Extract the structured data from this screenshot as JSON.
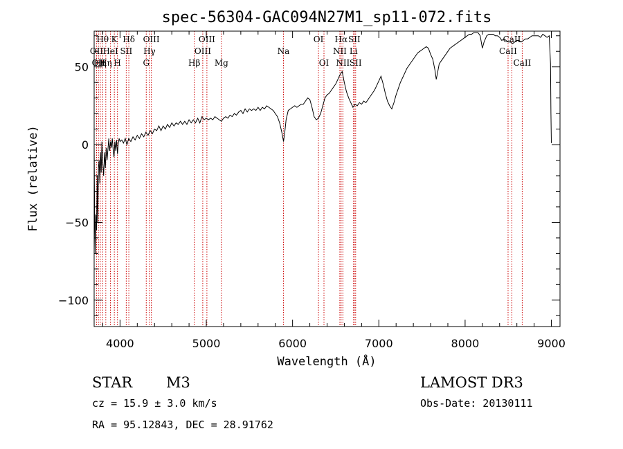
{
  "title": "spec-56304-GAC094N27M1_sp11-072.fits",
  "footer": {
    "object_class": "STAR",
    "subclass": "M3",
    "redshift": "cz = 15.9 ± 3.0 km/s",
    "coords": "RA =  95.12843, DEC =  28.91762",
    "survey": "LAMOST DR3",
    "obs_date": "Obs-Date: 20130111"
  },
  "chart_data": {
    "type": "line",
    "title": "spec-56304-GAC094N27M1_sp11-072.fits",
    "xlabel": "Wavelength (Å)",
    "ylabel": "Flux (relative)",
    "xlim": [
      3700,
      9100
    ],
    "ylim": [
      -117,
      73
    ],
    "x_ticks": [
      4000,
      5000,
      6000,
      7000,
      8000,
      9000
    ],
    "y_ticks": [
      -100,
      -50,
      0,
      50
    ],
    "line_color": "#000000",
    "marker_color": "#cc0000",
    "series": [
      {
        "points": [
          [
            3700,
            0
          ],
          [
            3705,
            -40
          ],
          [
            3712,
            -70
          ],
          [
            3720,
            -45
          ],
          [
            3728,
            -55
          ],
          [
            3735,
            -20
          ],
          [
            3742,
            -50
          ],
          [
            3750,
            -15
          ],
          [
            3758,
            -10
          ],
          [
            3766,
            -25
          ],
          [
            3774,
            -5
          ],
          [
            3782,
            -18
          ],
          [
            3790,
            2
          ],
          [
            3800,
            -12
          ],
          [
            3810,
            -20
          ],
          [
            3820,
            -5
          ],
          [
            3830,
            -15
          ],
          [
            3840,
            -2
          ],
          [
            3850,
            -10
          ],
          [
            3860,
            -3
          ],
          [
            3870,
            4
          ],
          [
            3880,
            -4
          ],
          [
            3890,
            2
          ],
          [
            3900,
            -2
          ],
          [
            3910,
            4
          ],
          [
            3920,
            -3
          ],
          [
            3930,
            -8
          ],
          [
            3940,
            2
          ],
          [
            3950,
            -4
          ],
          [
            3960,
            3
          ],
          [
            3970,
            -6
          ],
          [
            3980,
            1
          ],
          [
            3990,
            4
          ],
          [
            4000,
            2
          ],
          [
            4020,
            3
          ],
          [
            4040,
            1
          ],
          [
            4060,
            4
          ],
          [
            4080,
            0
          ],
          [
            4100,
            4
          ],
          [
            4125,
            2
          ],
          [
            4150,
            5
          ],
          [
            4175,
            3
          ],
          [
            4200,
            6
          ],
          [
            4225,
            4
          ],
          [
            4250,
            7
          ],
          [
            4275,
            5
          ],
          [
            4300,
            8
          ],
          [
            4325,
            6
          ],
          [
            4350,
            9
          ],
          [
            4375,
            7
          ],
          [
            4400,
            10
          ],
          [
            4425,
            9
          ],
          [
            4450,
            12
          ],
          [
            4475,
            9
          ],
          [
            4500,
            12
          ],
          [
            4525,
            10
          ],
          [
            4550,
            13
          ],
          [
            4575,
            11
          ],
          [
            4600,
            14
          ],
          [
            4625,
            12
          ],
          [
            4650,
            14
          ],
          [
            4675,
            13
          ],
          [
            4700,
            15
          ],
          [
            4725,
            13
          ],
          [
            4750,
            15
          ],
          [
            4775,
            13
          ],
          [
            4800,
            16
          ],
          [
            4825,
            14
          ],
          [
            4850,
            16
          ],
          [
            4875,
            14
          ],
          [
            4900,
            17
          ],
          [
            4925,
            14
          ],
          [
            4950,
            18
          ],
          [
            4975,
            16
          ],
          [
            5000,
            17
          ],
          [
            5025,
            16
          ],
          [
            5050,
            17
          ],
          [
            5075,
            16
          ],
          [
            5100,
            18
          ],
          [
            5125,
            17
          ],
          [
            5150,
            16
          ],
          [
            5175,
            15
          ],
          [
            5200,
            17
          ],
          [
            5225,
            18
          ],
          [
            5250,
            17
          ],
          [
            5275,
            19
          ],
          [
            5300,
            18
          ],
          [
            5325,
            20
          ],
          [
            5350,
            19
          ],
          [
            5375,
            21
          ],
          [
            5400,
            22
          ],
          [
            5425,
            20
          ],
          [
            5450,
            23
          ],
          [
            5475,
            21
          ],
          [
            5500,
            23
          ],
          [
            5525,
            22
          ],
          [
            5550,
            23
          ],
          [
            5575,
            22
          ],
          [
            5600,
            24
          ],
          [
            5625,
            22
          ],
          [
            5650,
            24
          ],
          [
            5675,
            23
          ],
          [
            5700,
            25
          ],
          [
            5725,
            24
          ],
          [
            5750,
            23
          ],
          [
            5775,
            22
          ],
          [
            5800,
            20
          ],
          [
            5825,
            18
          ],
          [
            5850,
            14
          ],
          [
            5875,
            8
          ],
          [
            5895,
            2
          ],
          [
            5910,
            8
          ],
          [
            5925,
            16
          ],
          [
            5950,
            22
          ],
          [
            5975,
            23
          ],
          [
            6000,
            24
          ],
          [
            6025,
            25
          ],
          [
            6050,
            24
          ],
          [
            6075,
            25
          ],
          [
            6100,
            26
          ],
          [
            6125,
            26
          ],
          [
            6150,
            28
          ],
          [
            6175,
            30
          ],
          [
            6200,
            29
          ],
          [
            6225,
            24
          ],
          [
            6250,
            18
          ],
          [
            6275,
            16
          ],
          [
            6300,
            17
          ],
          [
            6325,
            20
          ],
          [
            6350,
            25
          ],
          [
            6375,
            30
          ],
          [
            6400,
            32
          ],
          [
            6425,
            33
          ],
          [
            6450,
            35
          ],
          [
            6475,
            37
          ],
          [
            6500,
            39
          ],
          [
            6525,
            42
          ],
          [
            6550,
            45
          ],
          [
            6575,
            47
          ],
          [
            6600,
            40
          ],
          [
            6625,
            34
          ],
          [
            6650,
            30
          ],
          [
            6675,
            27
          ],
          [
            6700,
            24
          ],
          [
            6725,
            26
          ],
          [
            6750,
            25
          ],
          [
            6775,
            27
          ],
          [
            6800,
            26
          ],
          [
            6825,
            28
          ],
          [
            6850,
            27
          ],
          [
            6875,
            29
          ],
          [
            6900,
            31
          ],
          [
            6925,
            33
          ],
          [
            6950,
            35
          ],
          [
            6975,
            38
          ],
          [
            7000,
            41
          ],
          [
            7025,
            44
          ],
          [
            7050,
            39
          ],
          [
            7075,
            33
          ],
          [
            7100,
            28
          ],
          [
            7125,
            25
          ],
          [
            7150,
            23
          ],
          [
            7175,
            27
          ],
          [
            7200,
            32
          ],
          [
            7225,
            36
          ],
          [
            7250,
            40
          ],
          [
            7275,
            43
          ],
          [
            7300,
            46
          ],
          [
            7325,
            49
          ],
          [
            7350,
            51
          ],
          [
            7375,
            53
          ],
          [
            7400,
            55
          ],
          [
            7425,
            57
          ],
          [
            7450,
            59
          ],
          [
            7475,
            60
          ],
          [
            7500,
            61
          ],
          [
            7525,
            62
          ],
          [
            7550,
            63
          ],
          [
            7575,
            62
          ],
          [
            7600,
            58
          ],
          [
            7625,
            55
          ],
          [
            7650,
            48
          ],
          [
            7665,
            42
          ],
          [
            7680,
            46
          ],
          [
            7700,
            52
          ],
          [
            7725,
            54
          ],
          [
            7750,
            56
          ],
          [
            7775,
            58
          ],
          [
            7800,
            60
          ],
          [
            7825,
            62
          ],
          [
            7850,
            63
          ],
          [
            7875,
            64
          ],
          [
            7900,
            65
          ],
          [
            7925,
            66
          ],
          [
            7950,
            67
          ],
          [
            7975,
            68
          ],
          [
            8000,
            69
          ],
          [
            8025,
            70
          ],
          [
            8050,
            71
          ],
          [
            8075,
            71
          ],
          [
            8100,
            72
          ],
          [
            8125,
            72
          ],
          [
            8150,
            72
          ],
          [
            8175,
            70
          ],
          [
            8200,
            62
          ],
          [
            8220,
            66
          ],
          [
            8250,
            70
          ],
          [
            8275,
            71
          ],
          [
            8300,
            71
          ],
          [
            8325,
            71
          ],
          [
            8350,
            70
          ],
          [
            8375,
            70
          ],
          [
            8400,
            69
          ],
          [
            8425,
            67
          ],
          [
            8450,
            68
          ],
          [
            8475,
            67
          ],
          [
            8500,
            66
          ],
          [
            8525,
            66
          ],
          [
            8550,
            65
          ],
          [
            8575,
            66
          ],
          [
            8600,
            67
          ],
          [
            8625,
            67
          ],
          [
            8650,
            66
          ],
          [
            8675,
            67
          ],
          [
            8700,
            68
          ],
          [
            8725,
            68
          ],
          [
            8750,
            69
          ],
          [
            8775,
            70
          ],
          [
            8800,
            70
          ],
          [
            8825,
            70
          ],
          [
            8850,
            70
          ],
          [
            8875,
            69
          ],
          [
            8900,
            71
          ],
          [
            8925,
            70
          ],
          [
            8950,
            69
          ],
          [
            8975,
            70
          ],
          [
            8990,
            52
          ],
          [
            8995,
            20
          ],
          [
            9000,
            1
          ]
        ]
      }
    ],
    "line_markers": [
      {
        "wavelength": 3728,
        "label": "OII",
        "row": 2
      },
      {
        "wavelength": 3750,
        "label": "OII",
        "row": 3
      },
      {
        "wavelength": 3771,
        "label": "Hη",
        "row": 3
      },
      {
        "wavelength": 3798,
        "label": "Hθ",
        "row": 1
      },
      {
        "wavelength": 3835,
        "label": "Hη",
        "row": 3
      },
      {
        "wavelength": 3889,
        "label": "HeI",
        "row": 2
      },
      {
        "wavelength": 3934,
        "label": "K",
        "row": 1
      },
      {
        "wavelength": 3970,
        "label": "H",
        "row": 3
      },
      {
        "wavelength": 4072,
        "label": "SII",
        "row": 2
      },
      {
        "wavelength": 4102,
        "label": "Hδ",
        "row": 1
      },
      {
        "wavelength": 4304,
        "label": "G",
        "row": 3
      },
      {
        "wavelength": 4341,
        "label": "Hγ",
        "row": 2
      },
      {
        "wavelength": 4363,
        "label": "OIII",
        "row": 1
      },
      {
        "wavelength": 4861,
        "label": "Hβ",
        "row": 3
      },
      {
        "wavelength": 4959,
        "label": "OIII",
        "row": 2
      },
      {
        "wavelength": 5007,
        "label": "OIII",
        "row": 1
      },
      {
        "wavelength": 5175,
        "label": "Mg",
        "row": 3
      },
      {
        "wavelength": 5894,
        "label": "Na",
        "row": 2
      },
      {
        "wavelength": 6300,
        "label": "OI",
        "row": 1
      },
      {
        "wavelength": 6364,
        "label": "OI",
        "row": 3
      },
      {
        "wavelength": 6548,
        "label": "NII",
        "row": 2
      },
      {
        "wavelength": 6563,
        "label": "Hα",
        "row": 1
      },
      {
        "wavelength": 6583,
        "label": "NII",
        "row": 3
      },
      {
        "wavelength": 6707,
        "label": "Li",
        "row": 2
      },
      {
        "wavelength": 6716,
        "label": "SII",
        "row": 1
      },
      {
        "wavelength": 6731,
        "label": "SII",
        "row": 3
      },
      {
        "wavelength": 8498,
        "label": "CaII",
        "row": 2
      },
      {
        "wavelength": 8542,
        "label": "CaII",
        "row": 1
      },
      {
        "wavelength": 8662,
        "label": "CaII",
        "row": 3
      }
    ]
  }
}
